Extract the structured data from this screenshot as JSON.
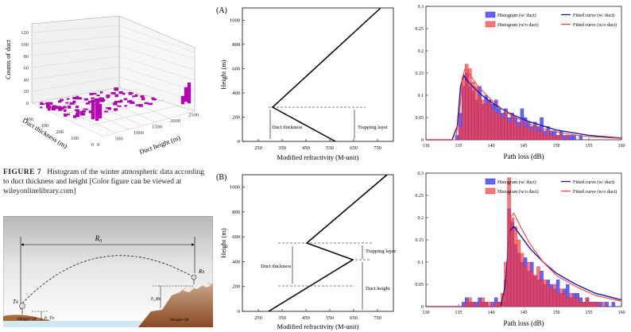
{
  "panel3d": {
    "zlabel": "Counts of duct",
    "xlabel": "Duct thickness (m)",
    "ylabel": "Duct height (m)",
    "zticks": [
      "0",
      "20",
      "40",
      "60",
      "80",
      "100",
      "120"
    ],
    "xticks": [
      "0",
      "100",
      "200",
      "300",
      "400"
    ],
    "yticks": [
      "0",
      "500",
      "1000",
      "1500",
      "2000",
      "2500"
    ]
  },
  "caption": {
    "label": "FIGURE 7",
    "text": "Histogram of the winter atmospheric data according to duct thickness and height [Color figure can be viewed at wileyonlinelibrary.com]"
  },
  "scene": {
    "r0": "R₀",
    "tx": "Tx",
    "rx": "Rx",
    "h_left": "h_Tx",
    "h_right": "h_Rx",
    "left_ground": "Height=20",
    "right_ground": "Height=40"
  },
  "profileA": {
    "label": "(A)",
    "ylabel": "Height (m)",
    "xlabel": "Modified refractivity (M-unit)",
    "yticks": [
      "0",
      "200",
      "400",
      "600",
      "800",
      "1000"
    ],
    "xticks": [
      "250",
      "350",
      "450",
      "550",
      "650",
      "750"
    ],
    "ann_thickness": "Duct thickness",
    "ann_trapping": "Trapping layer"
  },
  "profileB": {
    "label": "(B)",
    "ylabel": "Height (m)",
    "xlabel": "Modified refractivity (M-unit)",
    "yticks": [
      "0",
      "200",
      "400",
      "600",
      "800",
      "1000"
    ],
    "xticks": [
      "250",
      "350",
      "450",
      "550",
      "650",
      "750"
    ],
    "ann_thickness": "Duct thickness",
    "ann_trapping": "Trapping layer",
    "ann_height": "Duct height"
  },
  "colors": {
    "blue": "#3b3bff",
    "red": "#ff3b3b",
    "navy": "#1a1aa8"
  },
  "chart_data": [
    {
      "type": "bar",
      "title": "",
      "xlabel": "Path loss (dB)",
      "ylabel": "",
      "xlim": [
        130,
        160
      ],
      "ylim": [
        0,
        0.3
      ],
      "xticks": [
        "130",
        "135",
        "140",
        "145",
        "150",
        "155",
        "160"
      ],
      "yticks": [
        "0",
        "0.05",
        "0.1",
        "0.15",
        "0.2",
        "0.25",
        "0.3"
      ],
      "bin_start": 130,
      "bin_width": 0.5,
      "legend": {
        "position": "top-right",
        "entries": [
          "Histogram (w/ duct)",
          "Histogram (w/o duct)",
          "Fitted curve (w/ duct)",
          "Fitted curve (w/o duct)"
        ]
      },
      "series": [
        {
          "name": "Histogram (w/ duct)",
          "kind": "hist",
          "values": [
            0,
            0,
            0,
            0,
            0,
            0,
            0,
            0,
            0,
            0.01,
            0.06,
            0.12,
            0.15,
            0.12,
            0.11,
            0.09,
            0.12,
            0.08,
            0.1,
            0.09,
            0.08,
            0.09,
            0.07,
            0.06,
            0.07,
            0.05,
            0.06,
            0.05,
            0.04,
            0.07,
            0.05,
            0.04,
            0.03,
            0.04,
            0.03,
            0.05,
            0.02,
            0.03,
            0.02,
            0.02,
            0.01,
            0.02,
            0.01,
            0.01,
            0.01,
            0.01,
            0,
            0.01,
            0,
            0,
            0,
            0,
            0,
            0,
            0,
            0,
            0,
            0,
            0,
            0
          ]
        },
        {
          "name": "Histogram (w/o duct)",
          "kind": "hist",
          "values": [
            0,
            0,
            0,
            0,
            0,
            0,
            0,
            0,
            0,
            0,
            0.03,
            0.14,
            0.17,
            0.16,
            0.13,
            0.12,
            0.1,
            0.09,
            0.08,
            0.09,
            0.07,
            0.06,
            0.06,
            0.05,
            0.06,
            0.04,
            0.05,
            0.04,
            0.03,
            0.04,
            0.03,
            0.03,
            0.02,
            0.03,
            0.02,
            0.02,
            0.01,
            0.02,
            0.01,
            0.01,
            0.01,
            0.01,
            0,
            0.01,
            0,
            0,
            0,
            0,
            0,
            0,
            0,
            0,
            0,
            0,
            0,
            0,
            0,
            0,
            0,
            0
          ]
        },
        {
          "name": "Fitted curve (w/ duct)",
          "kind": "line",
          "x": [
            130,
            134,
            134.8,
            135.3,
            135.8,
            136.5,
            137.5,
            139,
            141,
            143,
            146,
            150,
            155,
            160
          ],
          "y": [
            0,
            0,
            0.03,
            0.12,
            0.145,
            0.13,
            0.115,
            0.095,
            0.075,
            0.058,
            0.04,
            0.022,
            0.01,
            0.004
          ]
        },
        {
          "name": "Fitted curve (w/o duct)",
          "kind": "line",
          "x": [
            130,
            134.5,
            135.1,
            135.6,
            136,
            136.8,
            138,
            140,
            142,
            145,
            149,
            154,
            160
          ],
          "y": [
            0,
            0,
            0.05,
            0.14,
            0.16,
            0.145,
            0.12,
            0.09,
            0.065,
            0.04,
            0.02,
            0.008,
            0.003
          ]
        }
      ]
    },
    {
      "type": "bar",
      "title": "",
      "xlabel": "Path loss (dB)",
      "ylabel": "",
      "xlim": [
        130,
        160
      ],
      "ylim": [
        0,
        0.3
      ],
      "xticks": [
        "130",
        "135",
        "140",
        "145",
        "150",
        "155",
        "160"
      ],
      "yticks": [
        "0",
        "0.05",
        "0.1",
        "0.15",
        "0.2",
        "0.25",
        "0.3"
      ],
      "bin_start": 130,
      "bin_width": 0.5,
      "legend": {
        "position": "top-right",
        "entries": [
          "Histogram (w/ duct)",
          "Histogram (w/o duct)",
          "Fitted curve (w/ duct)",
          "Fitted curve (w/o duct)"
        ]
      },
      "series": [
        {
          "name": "Histogram (w/ duct)",
          "kind": "hist",
          "values": [
            0,
            0,
            0,
            0,
            0,
            0,
            0,
            0,
            0,
            0,
            0,
            0.01,
            0.02,
            0.01,
            0.01,
            0.01,
            0.02,
            0.01,
            0.01,
            0,
            0.01,
            0.02,
            0.01,
            0.01,
            0.06,
            0.22,
            0.19,
            0.14,
            0.12,
            0.1,
            0.11,
            0.08,
            0.1,
            0.07,
            0.06,
            0.08,
            0.05,
            0.06,
            0.05,
            0.04,
            0.06,
            0.03,
            0.04,
            0.05,
            0.02,
            0.03,
            0.03,
            0.02,
            0.01,
            0.02,
            0.01,
            0.01,
            0.01,
            0.01,
            0,
            0.01,
            0,
            0.01,
            0,
            0
          ]
        },
        {
          "name": "Histogram (w/o duct)",
          "kind": "hist",
          "values": [
            0,
            0,
            0,
            0,
            0,
            0,
            0,
            0,
            0,
            0,
            0,
            0,
            0.01,
            0.02,
            0.01,
            0,
            0.01,
            0.02,
            0.01,
            0.01,
            0,
            0.01,
            0.01,
            0.03,
            0.1,
            0.29,
            0.2,
            0.18,
            0.15,
            0.12,
            0.09,
            0.1,
            0.08,
            0.07,
            0.09,
            0.06,
            0.06,
            0.05,
            0.04,
            0.05,
            0.03,
            0.04,
            0.03,
            0.02,
            0.03,
            0.02,
            0.02,
            0.01,
            0.01,
            0.02,
            0.01,
            0.01,
            0.01,
            0,
            0.01,
            0,
            0,
            0,
            0,
            0
          ]
        },
        {
          "name": "Fitted curve (w/ duct)",
          "kind": "line",
          "x": [
            130,
            141.5,
            142.2,
            142.8,
            143.5,
            144.5,
            146,
            148,
            150,
            153,
            156,
            160
          ],
          "y": [
            0,
            0,
            0.05,
            0.17,
            0.18,
            0.16,
            0.13,
            0.1,
            0.075,
            0.05,
            0.03,
            0.015
          ]
        },
        {
          "name": "Fitted curve (w/o duct)",
          "kind": "line",
          "x": [
            130,
            141.8,
            142.4,
            142.9,
            143.5,
            144.5,
            146,
            148,
            150,
            153,
            156,
            160
          ],
          "y": [
            0,
            0,
            0.06,
            0.2,
            0.21,
            0.18,
            0.14,
            0.1,
            0.07,
            0.045,
            0.025,
            0.012
          ]
        }
      ]
    }
  ]
}
